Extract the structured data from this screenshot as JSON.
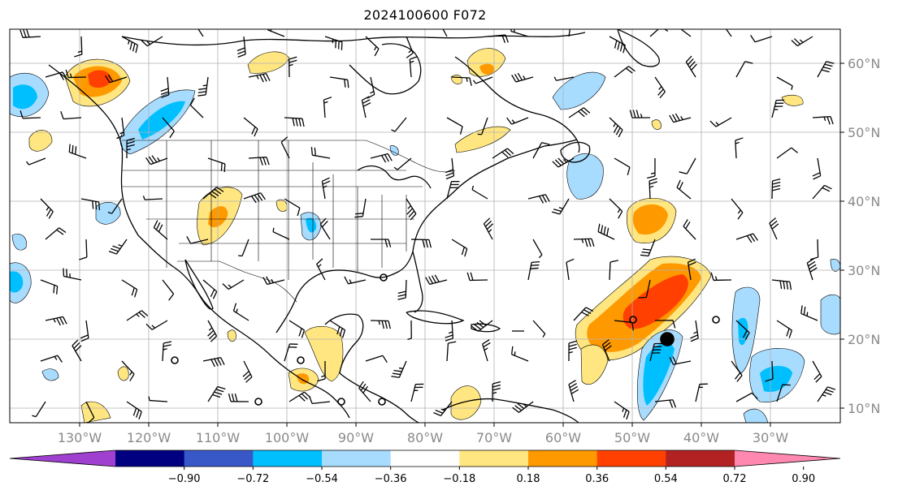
{
  "title": "2024100600 F072",
  "map": {
    "lon_labels": [
      "130°W",
      "120°W",
      "110°W",
      "100°W",
      "90°W",
      "80°W",
      "70°W",
      "60°W",
      "50°W",
      "40°W",
      "30°W"
    ],
    "lat_labels": [
      "60°N",
      "50°N",
      "40°N",
      "30°N",
      "20°N",
      "10°N"
    ],
    "lon_values": [
      -130,
      -120,
      -110,
      -100,
      -90,
      -80,
      -70,
      -60,
      -50,
      -40,
      -30
    ],
    "lat_values": [
      60,
      50,
      40,
      30,
      20,
      10
    ],
    "projection": "cylindrical",
    "gridlines": true,
    "overlays": [
      "wind barbs",
      "coastlines",
      "state borders",
      "shaded anomaly contours"
    ],
    "colors": {
      "positive_light": "#ffe680",
      "positive_mid": "#ff9900",
      "positive_strong": "#ff4000",
      "negative_light": "#a8dcff",
      "negative_mid": "#00bfff",
      "grid": "#b0b0b0"
    }
  },
  "colorbar": {
    "levels": [
      "−0.90",
      "−0.72",
      "−0.54",
      "−0.36",
      "−0.18",
      "0.18",
      "0.36",
      "0.54",
      "0.72",
      "0.90"
    ],
    "colors": [
      "#a040d0",
      "#000080",
      "#3858c8",
      "#00bfff",
      "#a8dcff",
      "#ffffff",
      "#ffe680",
      "#ff9900",
      "#ff4000",
      "#b22222",
      "#ff88b0"
    ],
    "extend": "both"
  }
}
